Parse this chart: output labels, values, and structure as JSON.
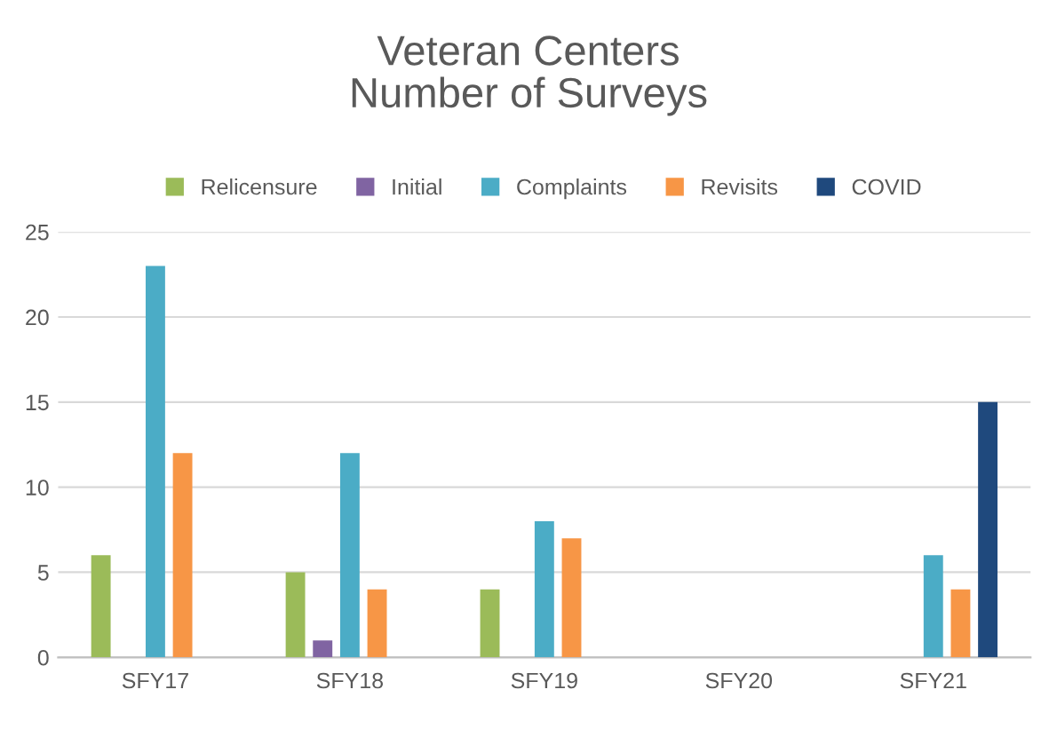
{
  "chart_data": {
    "type": "bar",
    "title": "Veteran Centers\nNumber of Surveys",
    "categories": [
      "SFY17",
      "SFY18",
      "SFY19",
      "SFY20",
      "SFY21"
    ],
    "series": [
      {
        "name": "Relicensure",
        "color": "#9bbb59",
        "values": [
          6,
          5,
          4,
          0,
          0
        ]
      },
      {
        "name": "Initial",
        "color": "#8064a2",
        "values": [
          0,
          1,
          0,
          0,
          0
        ]
      },
      {
        "name": "Complaints",
        "color": "#4bacc6",
        "values": [
          23,
          12,
          8,
          0,
          6
        ]
      },
      {
        "name": "Revisits",
        "color": "#f79646",
        "values": [
          12,
          4,
          7,
          0,
          4
        ]
      },
      {
        "name": "COVID",
        "color": "#1f497d",
        "values": [
          0,
          0,
          0,
          0,
          15
        ]
      }
    ],
    "ylim": [
      0,
      25
    ],
    "yticks": [
      0,
      5,
      10,
      15,
      20,
      25
    ],
    "grid": "y",
    "legend": "top"
  }
}
